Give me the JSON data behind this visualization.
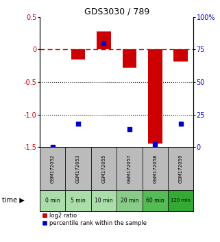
{
  "title": "GDS3030 / 789",
  "samples": [
    "GSM172052",
    "GSM172053",
    "GSM172055",
    "GSM172057",
    "GSM172058",
    "GSM172059"
  ],
  "times": [
    "0 min",
    "5 min",
    "10 min",
    "20 min",
    "60 min",
    "120 min"
  ],
  "log2_ratio": [
    0.0,
    -0.15,
    0.28,
    -0.28,
    -1.45,
    -0.18
  ],
  "percentile_rank": [
    0.0,
    18.0,
    80.0,
    14.0,
    2.0,
    18.0
  ],
  "bar_color": "#cc0000",
  "dot_color": "#0000cc",
  "ylim_left": [
    -1.5,
    0.5
  ],
  "ylim_right": [
    0,
    100
  ],
  "yticks_left": [
    0.5,
    0,
    -0.5,
    -1.0,
    -1.5
  ],
  "yticks_right": [
    100,
    75,
    50,
    25,
    0
  ],
  "dashed_line_color": "#cc0000",
  "sample_bg_color": "#bbbbbb",
  "time_bg_colors": [
    "#aaddaa",
    "#aaddaa",
    "#aaddaa",
    "#88cc88",
    "#55bb55",
    "#33aa33"
  ],
  "legend_log2": "log2 ratio",
  "legend_pct": "percentile rank within the sample",
  "bar_width": 0.55,
  "left_label_color": "#cc0000",
  "right_label_color": "#0000cc"
}
